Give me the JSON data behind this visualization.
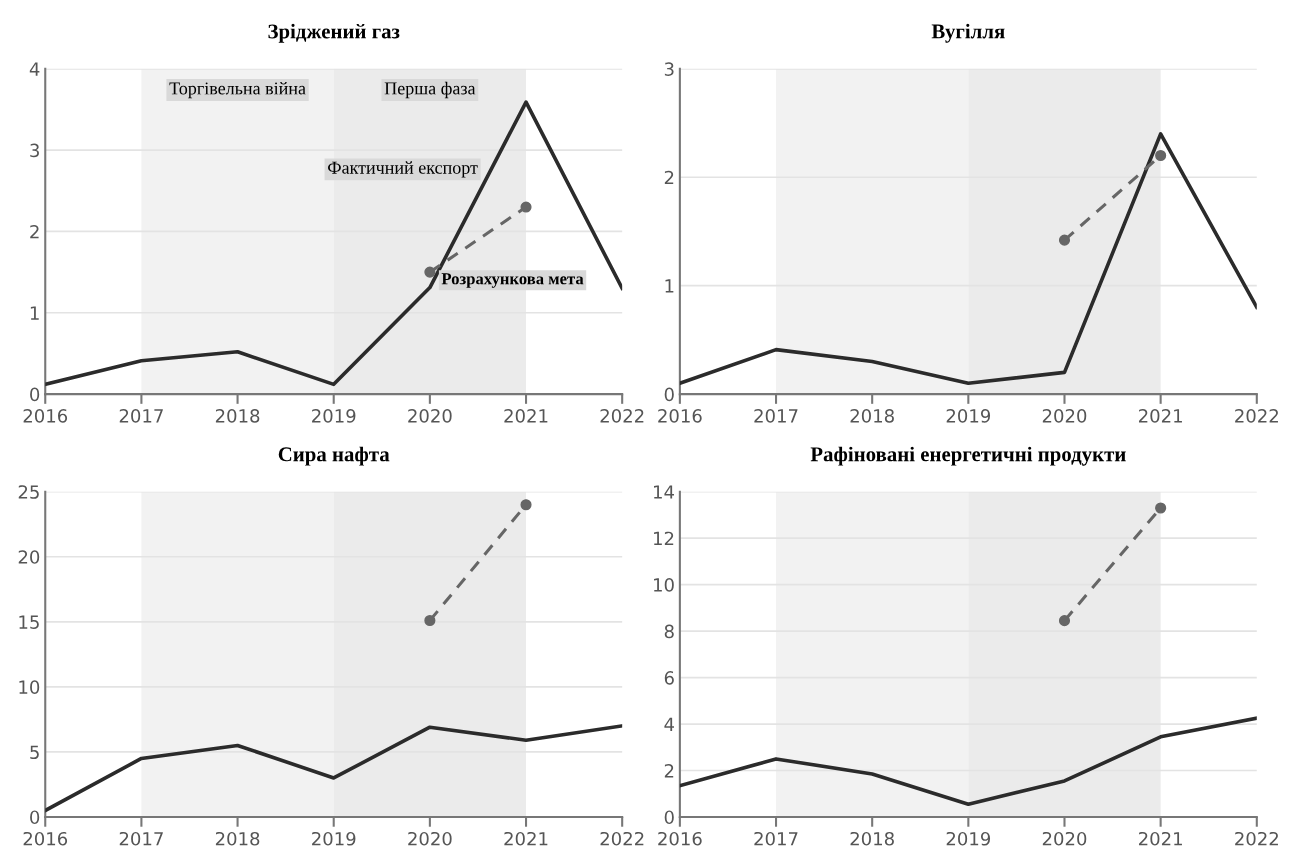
{
  "chart_data": [
    {
      "type": "line",
      "title": "Зріджений газ",
      "x": [
        2016,
        2017,
        2018,
        2019,
        2020,
        2021,
        2022
      ],
      "xlim": [
        2016,
        2022
      ],
      "xticks": [
        2016,
        2017,
        2018,
        2019,
        2020,
        2021,
        2022
      ],
      "ylim": [
        0,
        4
      ],
      "yticks": [
        0,
        1,
        2,
        3,
        4
      ],
      "grid": "y",
      "legend": false,
      "bands": [
        {
          "axis": "x",
          "from": 2017,
          "to": 2019,
          "label": "Торгівельна війна",
          "color": "#f2f2f2"
        },
        {
          "axis": "x",
          "from": 2019,
          "to": 2021,
          "label": "Перша фаза",
          "color": "#ebebeb"
        }
      ],
      "series": [
        {
          "name": "Фактичний експорт",
          "color": "#2b2b2b",
          "line_style": "solid",
          "marker": "none",
          "values": [
            0.12,
            0.41,
            0.52,
            0.12,
            1.31,
            3.59,
            1.3
          ]
        },
        {
          "name": "Розрахункова мета",
          "color": "#666666",
          "line_style": "dashed",
          "marker": "circle",
          "values": [
            null,
            null,
            null,
            null,
            1.5,
            2.3,
            null
          ]
        }
      ]
    },
    {
      "type": "line",
      "title": "Вугілля",
      "x": [
        2016,
        2017,
        2018,
        2019,
        2020,
        2021,
        2022
      ],
      "xlim": [
        2016,
        2022
      ],
      "xticks": [
        2016,
        2017,
        2018,
        2019,
        2020,
        2021,
        2022
      ],
      "ylim": [
        0,
        3
      ],
      "yticks": [
        0,
        1,
        2,
        3
      ],
      "grid": "y",
      "legend": false,
      "bands": [
        {
          "axis": "x",
          "from": 2017,
          "to": 2019,
          "color": "#f2f2f2"
        },
        {
          "axis": "x",
          "from": 2019,
          "to": 2021,
          "color": "#ebebeb"
        }
      ],
      "series": [
        {
          "color": "#2b2b2b",
          "line_style": "solid",
          "marker": "none",
          "values": [
            0.1,
            0.41,
            0.3,
            0.1,
            0.2,
            2.4,
            0.8
          ]
        },
        {
          "color": "#666666",
          "line_style": "dashed",
          "marker": "circle",
          "values": [
            null,
            null,
            null,
            null,
            1.42,
            2.2,
            null
          ]
        }
      ]
    },
    {
      "type": "line",
      "title": "Сира нафта",
      "x": [
        2016,
        2017,
        2018,
        2019,
        2020,
        2021,
        2022
      ],
      "xlim": [
        2016,
        2022
      ],
      "xticks": [
        2016,
        2017,
        2018,
        2019,
        2020,
        2021,
        2022
      ],
      "ylim": [
        0,
        25
      ],
      "yticks": [
        0,
        5,
        10,
        15,
        20,
        25
      ],
      "grid": "y",
      "legend": false,
      "bands": [
        {
          "axis": "x",
          "from": 2017,
          "to": 2019,
          "color": "#f2f2f2"
        },
        {
          "axis": "x",
          "from": 2019,
          "to": 2021,
          "color": "#ebebeb"
        }
      ],
      "series": [
        {
          "color": "#2b2b2b",
          "line_style": "solid",
          "marker": "none",
          "values": [
            0.5,
            4.5,
            5.5,
            3.0,
            6.9,
            5.9,
            7.0
          ]
        },
        {
          "color": "#666666",
          "line_style": "dashed",
          "marker": "circle",
          "values": [
            null,
            null,
            null,
            null,
            15.1,
            24.0,
            null
          ]
        }
      ]
    },
    {
      "type": "line",
      "title": "Рафіновані енергетичні продукти",
      "x": [
        2016,
        2017,
        2018,
        2019,
        2020,
        2021,
        2022
      ],
      "xlim": [
        2016,
        2022
      ],
      "xticks": [
        2016,
        2017,
        2018,
        2019,
        2020,
        2021,
        2022
      ],
      "ylim": [
        0,
        14
      ],
      "yticks": [
        0,
        2,
        4,
        6,
        8,
        10,
        12,
        14
      ],
      "grid": "y",
      "legend": false,
      "bands": [
        {
          "axis": "x",
          "from": 2017,
          "to": 2019,
          "color": "#f2f2f2"
        },
        {
          "axis": "x",
          "from": 2019,
          "to": 2021,
          "color": "#ebebeb"
        }
      ],
      "series": [
        {
          "color": "#2b2b2b",
          "line_style": "solid",
          "marker": "none",
          "values": [
            1.35,
            2.5,
            1.85,
            0.55,
            1.55,
            3.45,
            4.25
          ]
        },
        {
          "color": "#666666",
          "line_style": "dashed",
          "marker": "circle",
          "values": [
            null,
            null,
            null,
            null,
            8.45,
            13.3,
            null
          ]
        }
      ]
    }
  ]
}
